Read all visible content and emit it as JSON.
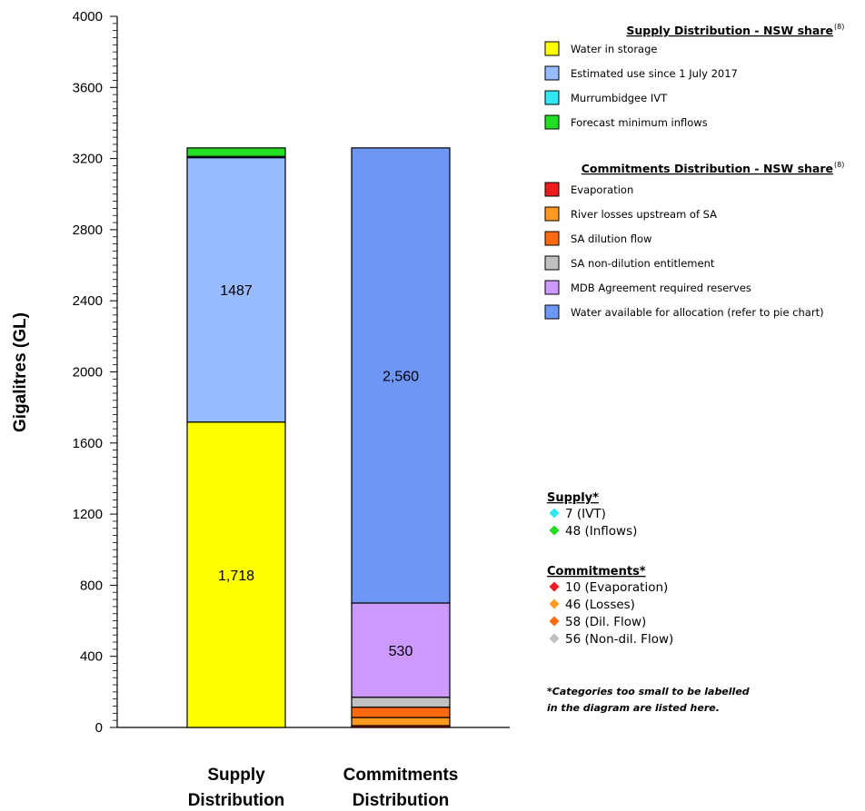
{
  "chart_data": {
    "type": "bar",
    "stacked": true,
    "ylabel": "Gigalitres (GL)",
    "ylim": [
      0,
      4000
    ],
    "yticks": [
      0,
      400,
      800,
      1200,
      1600,
      2000,
      2400,
      2800,
      3200,
      3600,
      4000
    ],
    "categories": [
      "Supply Distribution",
      "Commitments Distribution"
    ],
    "category_lines": [
      [
        "Supply",
        "Distribution"
      ],
      [
        "Commitments",
        "Distribution"
      ]
    ],
    "series": [
      {
        "name": "Water in storage",
        "color": "#ffff00",
        "values": [
          1718,
          0
        ],
        "label": "1,718"
      },
      {
        "name": "Estimated use since 1 July 2017",
        "color": "#99bbff",
        "values": [
          1487,
          0
        ],
        "label": "1487"
      },
      {
        "name": "Murrumbidgee IVT",
        "color": "#33e6f2",
        "values": [
          7,
          0
        ],
        "label": ""
      },
      {
        "name": "Forecast minimum inflows",
        "color": "#22dd22",
        "values": [
          48,
          0
        ],
        "label": ""
      },
      {
        "name": "Evaporation",
        "color": "#ee1c1c",
        "values": [
          0,
          10
        ],
        "label": ""
      },
      {
        "name": "River losses upstream of SA",
        "color": "#ff9922",
        "values": [
          0,
          46
        ],
        "label": ""
      },
      {
        "name": "SA dilution flow",
        "color": "#ff6a10",
        "values": [
          0,
          58
        ],
        "label": ""
      },
      {
        "name": "SA non-dilution entitlement",
        "color": "#c0c0c0",
        "values": [
          0,
          56
        ],
        "label": ""
      },
      {
        "name": "MDB Agreement required reserves",
        "color": "#cc99ff",
        "values": [
          0,
          530
        ],
        "label": "530"
      },
      {
        "name": "Water available for allocation (refer to pie chart)",
        "color": "#6e96f5",
        "values": [
          0,
          2560
        ],
        "label": "2,560"
      }
    ],
    "legend": [
      {
        "title": "Supply Distribution - NSW share",
        "superscript": "(8)",
        "items": [
          {
            "label": "Water in storage",
            "color": "#ffff00"
          },
          {
            "label": "Estimated use since 1 July 2017",
            "color": "#99bbff"
          },
          {
            "label": "Murrumbidgee IVT",
            "color": "#33e6f2"
          },
          {
            "label": "Forecast minimum inflows",
            "color": "#22dd22"
          }
        ]
      },
      {
        "title": "Commitments Distribution - NSW share",
        "superscript": "(8)",
        "items": [
          {
            "label": "Evaporation",
            "color": "#ee1c1c"
          },
          {
            "label": "River losses upstream of SA",
            "color": "#ff9922"
          },
          {
            "label": "SA dilution flow",
            "color": "#ff6a10"
          },
          {
            "label": "SA non-dilution entitlement",
            "color": "#c0c0c0"
          },
          {
            "label": "MDB Agreement required reserves",
            "color": "#cc99ff"
          },
          {
            "label": "Water available for allocation (refer to pie chart)",
            "color": "#6e96f5"
          }
        ]
      }
    ],
    "small_categories": [
      {
        "title": "Supply*",
        "items": [
          {
            "label": "7 (IVT)",
            "color": "#33e6f2"
          },
          {
            "label": "48 (Inflows)",
            "color": "#22dd22"
          }
        ]
      },
      {
        "title": "Commitments*",
        "items": [
          {
            "label": "10 (Evaporation)",
            "color": "#ee1c1c"
          },
          {
            "label": "46 (Losses)",
            "color": "#ff9922"
          },
          {
            "label": "58 (Dil. Flow)",
            "color": "#ff6a10"
          },
          {
            "label": "56 (Non-dil. Flow)",
            "color": "#c0c0c0"
          }
        ]
      }
    ],
    "note": [
      "*Categories too small to be labelled",
      "in the diagram are listed here."
    ]
  }
}
